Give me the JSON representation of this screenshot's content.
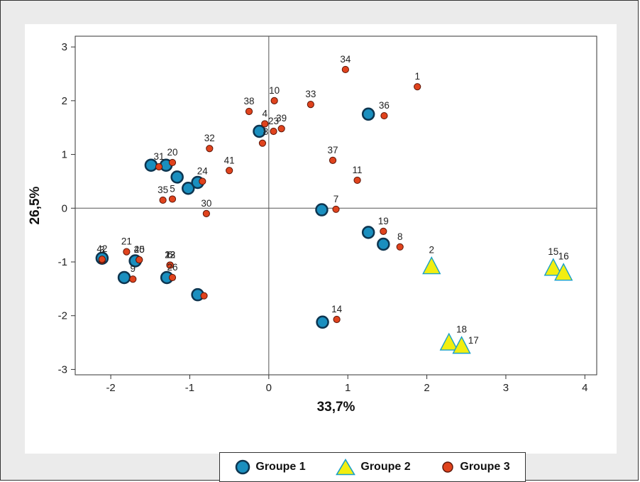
{
  "chart_data": {
    "type": "scatter",
    "title": "",
    "xlabel": "33,7%",
    "ylabel": "26,5%",
    "xlim": [
      -2.45,
      4.15
    ],
    "ylim": [
      -3.1,
      3.2
    ],
    "xticks": [
      "-2",
      "-1",
      "0",
      "1",
      "2",
      "3",
      "4"
    ],
    "yticks": [
      "-3",
      "-2",
      "-1",
      "0",
      "1",
      "2",
      "3"
    ],
    "xtick_values": [
      -2,
      -1,
      0,
      1,
      2,
      3,
      4
    ],
    "ytick_values": [
      -3,
      -2,
      -1,
      0,
      1,
      2,
      3
    ],
    "reference_lines": {
      "x": 0,
      "y": 0
    },
    "grid": false,
    "legend_position": "bottom",
    "series": [
      {
        "name": "Groupe 1",
        "marker": "circle-large",
        "color": "#1a8fbf",
        "edge_color": "#0d3550",
        "points": [
          {
            "x": -2.11,
            "y": -0.93
          },
          {
            "x": -1.83,
            "y": -1.29
          },
          {
            "x": -1.69,
            "y": -0.98
          },
          {
            "x": -1.49,
            "y": 0.8
          },
          {
            "x": -1.3,
            "y": 0.8
          },
          {
            "x": -1.29,
            "y": -1.29
          },
          {
            "x": -1.16,
            "y": 0.58
          },
          {
            "x": -1.02,
            "y": 0.37
          },
          {
            "x": -0.9,
            "y": 0.48
          },
          {
            "x": -0.9,
            "y": -1.61
          },
          {
            "x": -0.12,
            "y": 1.43
          },
          {
            "x": 0.67,
            "y": -0.03
          },
          {
            "x": 0.68,
            "y": -2.12
          },
          {
            "x": 1.26,
            "y": 1.75
          },
          {
            "x": 1.26,
            "y": -0.45
          },
          {
            "x": 1.45,
            "y": -0.67
          }
        ]
      },
      {
        "name": "Groupe 2",
        "marker": "triangle",
        "color": "#f2ee10",
        "edge_color": "#18a0c8",
        "points": [
          {
            "x": 2.06,
            "y": -1.1,
            "label": "2"
          },
          {
            "x": 2.28,
            "y": -2.52
          },
          {
            "x": 2.44,
            "y": -2.58,
            "label": "18"
          },
          {
            "x": 3.6,
            "y": -1.13,
            "label": "15"
          },
          {
            "x": 3.73,
            "y": -1.22,
            "label": "16"
          }
        ],
        "extra_labels": [
          {
            "x": 2.59,
            "y": -2.45,
            "label": "17"
          }
        ]
      },
      {
        "name": "Groupe 3",
        "marker": "circle-small",
        "color": "#e0431d",
        "edge_color": "#5a1508",
        "points": [
          {
            "x": 1.88,
            "y": 2.26,
            "label": "1"
          },
          {
            "x": -2.11,
            "y": -0.97,
            "label": "3"
          },
          {
            "x": -0.05,
            "y": 1.57,
            "label": "4"
          },
          {
            "x": -1.22,
            "y": 0.17,
            "label": "5"
          },
          {
            "x": -1.25,
            "y": -1.06,
            "label": "6"
          },
          {
            "x": 0.85,
            "y": -0.02,
            "label": "7"
          },
          {
            "x": 1.66,
            "y": -0.72,
            "label": "8"
          },
          {
            "x": -1.72,
            "y": -1.32,
            "label": "9"
          },
          {
            "x": 0.07,
            "y": 2.0,
            "label": "10"
          },
          {
            "x": 1.12,
            "y": 0.52,
            "label": "11"
          },
          {
            "x": -1.25,
            "y": -1.06,
            "label": "12"
          },
          {
            "x": -1.25,
            "y": -1.06,
            "label": "13"
          },
          {
            "x": 0.86,
            "y": -2.07,
            "label": "14"
          },
          {
            "x": 1.45,
            "y": -0.43,
            "label": "19"
          },
          {
            "x": -1.22,
            "y": 0.85,
            "label": "20"
          },
          {
            "x": -1.8,
            "y": -0.81,
            "label": "21"
          },
          {
            "x": -1.25,
            "y": -1.06,
            "label": "22"
          },
          {
            "x": 0.06,
            "y": 1.43,
            "label": "23"
          },
          {
            "x": -0.84,
            "y": 0.5,
            "label": "24"
          },
          {
            "x": -1.64,
            "y": -0.96,
            "label": "25"
          },
          {
            "x": -1.22,
            "y": -1.29,
            "label": "26"
          },
          {
            "x": -0.79,
            "y": -0.1,
            "label": "30"
          },
          {
            "x": -1.39,
            "y": 0.77,
            "label": "31"
          },
          {
            "x": -0.75,
            "y": 1.11,
            "label": "32"
          },
          {
            "x": 0.53,
            "y": 1.93,
            "label": "33"
          },
          {
            "x": 0.97,
            "y": 2.58,
            "label": "34"
          },
          {
            "x": -1.34,
            "y": 0.15,
            "label": "35"
          },
          {
            "x": 1.46,
            "y": 1.72,
            "label": "36"
          },
          {
            "x": 0.81,
            "y": 0.89,
            "label": "37"
          },
          {
            "x": -0.25,
            "y": 1.8,
            "label": "38"
          },
          {
            "x": 0.16,
            "y": 1.48,
            "label": "39"
          },
          {
            "x": -1.64,
            "y": -0.96,
            "label": "40"
          },
          {
            "x": -0.5,
            "y": 0.7,
            "label": "41"
          },
          {
            "x": -2.11,
            "y": -0.95,
            "label": "42"
          },
          {
            "x": -0.08,
            "y": 1.21
          },
          {
            "x": -0.82,
            "y": -1.63
          }
        ],
        "extra_labels": [
          {
            "x": -0.04,
            "y": 1.43,
            "label": "8"
          }
        ]
      }
    ]
  },
  "legend": {
    "items": [
      {
        "label": "Groupe 1",
        "icon": "circle-icon"
      },
      {
        "label": "Groupe 2",
        "icon": "triangle-icon"
      },
      {
        "label": "Groupe 3",
        "icon": "circle-icon"
      }
    ]
  },
  "colors": {
    "frame_background": "#ebebeb",
    "plot_background": "#ffffff",
    "axis": "#333333"
  }
}
